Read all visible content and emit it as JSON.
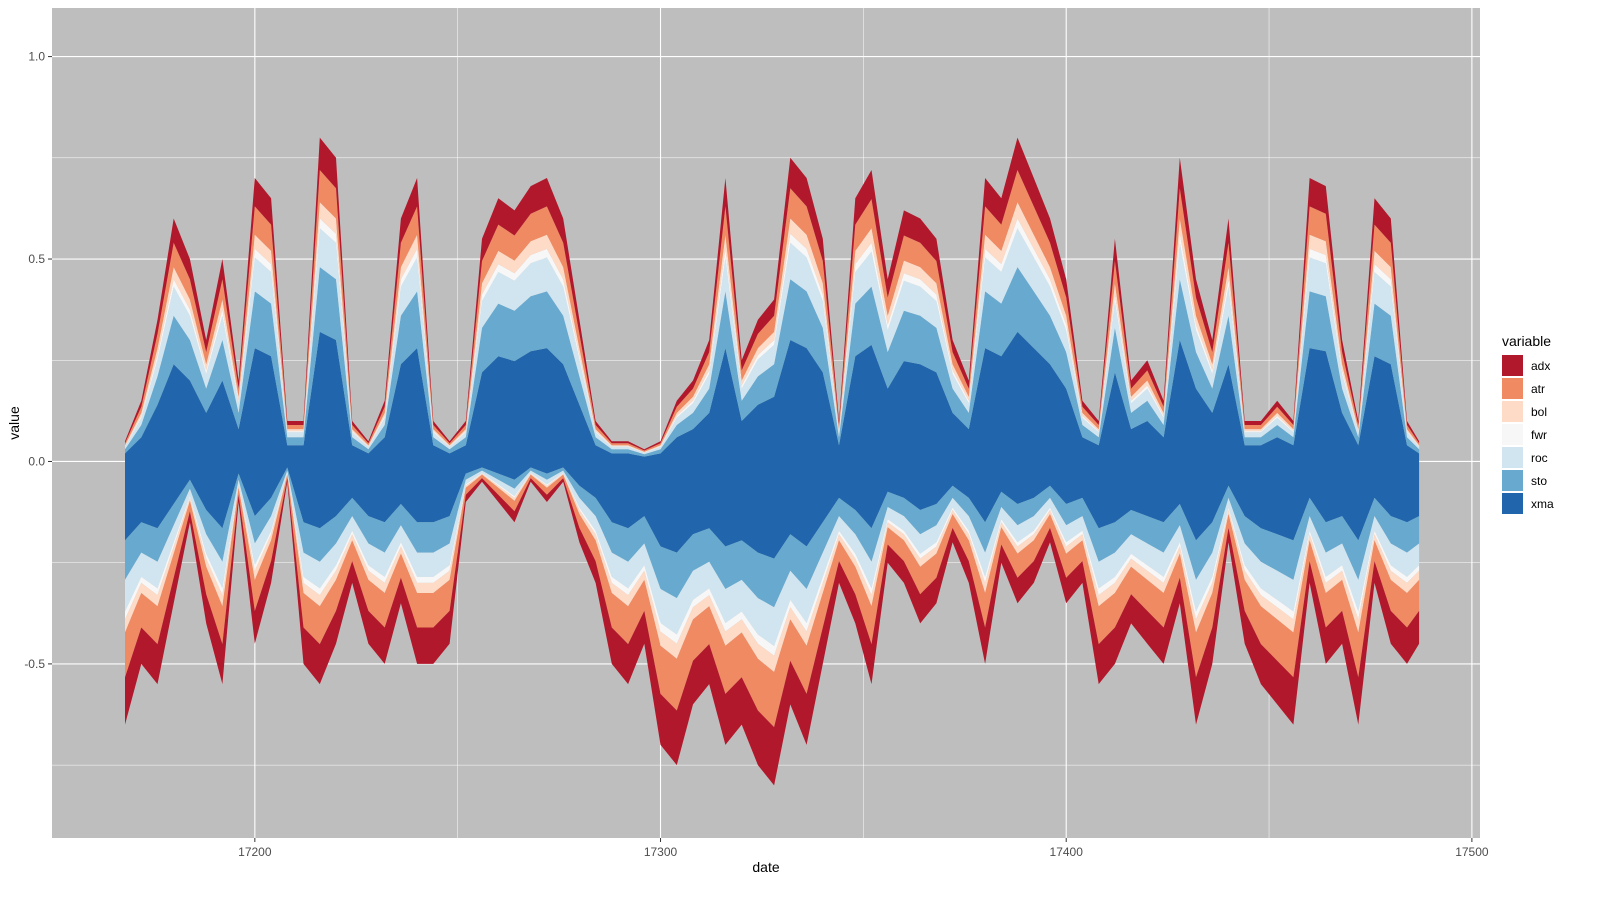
{
  "chart_data": {
    "type": "area",
    "stacked": true,
    "diverging": true,
    "xlabel": "date",
    "ylabel": "value",
    "xlim": [
      17150,
      17502
    ],
    "ylim": [
      -0.93,
      1.12
    ],
    "x_ticks": [
      17200,
      17300,
      17400,
      17500
    ],
    "x_tick_labels": [
      "17200",
      "17300",
      "17400",
      "17500"
    ],
    "y_ticks": [
      -0.5,
      0.0,
      0.5,
      1.0
    ],
    "y_tick_labels": [
      "-0.5",
      "0.0",
      "0.5",
      "1.0"
    ],
    "grid": true,
    "background": "#bebebe",
    "grid_color": "#ffffff",
    "legend": {
      "title": "variable",
      "position": "right",
      "entries": [
        "adx",
        "atr",
        "bol",
        "fwr",
        "roc",
        "sto",
        "xma"
      ]
    },
    "x_range_data": [
      17168,
      17487
    ],
    "series": [
      {
        "name": "xma",
        "color": "#2166ac"
      },
      {
        "name": "sto",
        "color": "#67a9cf"
      },
      {
        "name": "roc",
        "color": "#d1e5f0"
      },
      {
        "name": "fwr",
        "color": "#f7f7f7"
      },
      {
        "name": "bol",
        "color": "#fddbc7"
      },
      {
        "name": "atr",
        "color": "#ef8a62"
      },
      {
        "name": "adx",
        "color": "#b2182b"
      }
    ],
    "x_samples": [
      17168,
      17172,
      17176,
      17180,
      17184,
      17188,
      17192,
      17196,
      17200,
      17204,
      17208,
      17212,
      17216,
      17220,
      17224,
      17228,
      17232,
      17236,
      17240,
      17244,
      17248,
      17252,
      17256,
      17260,
      17264,
      17268,
      17272,
      17276,
      17280,
      17284,
      17288,
      17292,
      17296,
      17300,
      17304,
      17308,
      17312,
      17316,
      17320,
      17324,
      17328,
      17332,
      17336,
      17340,
      17344,
      17348,
      17352,
      17356,
      17360,
      17364,
      17368,
      17372,
      17376,
      17380,
      17384,
      17388,
      17392,
      17396,
      17400,
      17404,
      17408,
      17412,
      17416,
      17420,
      17424,
      17428,
      17432,
      17436,
      17440,
      17444,
      17448,
      17452,
      17456,
      17460,
      17464,
      17468,
      17472,
      17476,
      17480,
      17484,
      17487
    ],
    "positive_total": [
      0.05,
      0.15,
      0.35,
      0.6,
      0.5,
      0.3,
      0.5,
      0.2,
      0.7,
      0.65,
      0.1,
      0.1,
      0.8,
      0.75,
      0.1,
      0.05,
      0.15,
      0.6,
      0.7,
      0.1,
      0.05,
      0.1,
      0.55,
      0.65,
      0.62,
      0.68,
      0.7,
      0.6,
      0.35,
      0.1,
      0.05,
      0.05,
      0.03,
      0.05,
      0.15,
      0.2,
      0.3,
      0.7,
      0.25,
      0.35,
      0.4,
      0.75,
      0.7,
      0.55,
      0.1,
      0.65,
      0.72,
      0.45,
      0.62,
      0.6,
      0.55,
      0.3,
      0.2,
      0.7,
      0.65,
      0.8,
      0.7,
      0.6,
      0.45,
      0.15,
      0.1,
      0.55,
      0.2,
      0.25,
      0.15,
      0.75,
      0.45,
      0.3,
      0.6,
      0.1,
      0.1,
      0.15,
      0.1,
      0.7,
      0.68,
      0.3,
      0.1,
      0.65,
      0.6,
      0.1,
      0.05
    ],
    "negative_total": [
      -0.65,
      -0.5,
      -0.55,
      -0.35,
      -0.15,
      -0.4,
      -0.55,
      -0.1,
      -0.45,
      -0.3,
      -0.05,
      -0.5,
      -0.55,
      -0.45,
      -0.3,
      -0.45,
      -0.5,
      -0.35,
      -0.5,
      -0.5,
      -0.45,
      -0.1,
      -0.05,
      -0.1,
      -0.15,
      -0.05,
      -0.1,
      -0.05,
      -0.2,
      -0.3,
      -0.5,
      -0.55,
      -0.45,
      -0.7,
      -0.75,
      -0.6,
      -0.55,
      -0.7,
      -0.65,
      -0.75,
      -0.8,
      -0.6,
      -0.7,
      -0.5,
      -0.3,
      -0.4,
      -0.55,
      -0.25,
      -0.3,
      -0.4,
      -0.35,
      -0.2,
      -0.3,
      -0.5,
      -0.25,
      -0.35,
      -0.3,
      -0.2,
      -0.35,
      -0.3,
      -0.55,
      -0.5,
      -0.4,
      -0.45,
      -0.5,
      -0.35,
      -0.65,
      -0.5,
      -0.2,
      -0.45,
      -0.55,
      -0.6,
      -0.65,
      -0.3,
      -0.5,
      -0.45,
      -0.65,
      -0.3,
      -0.45,
      -0.5,
      -0.45
    ],
    "positive_shares": {
      "xma": 0.4,
      "sto": 0.2,
      "roc": 0.12,
      "fwr": 0.03,
      "bol": 0.05,
      "atr": 0.1,
      "adx": 0.1
    },
    "negative_shares": {
      "xma": 0.3,
      "sto": 0.15,
      "roc": 0.12,
      "fwr": 0.03,
      "bol": 0.05,
      "atr": 0.17,
      "adx": 0.18
    }
  }
}
